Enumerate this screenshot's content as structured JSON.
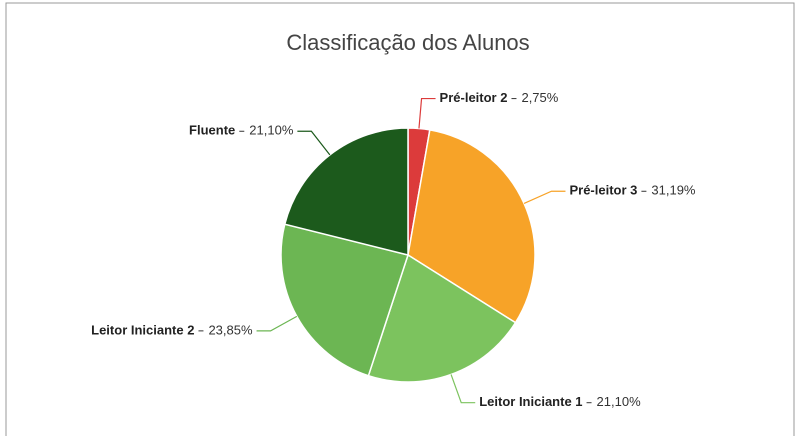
{
  "chart_data": {
    "type": "pie",
    "title": "Classificação dos Alunos",
    "categories": [
      "Pré-leitor 2",
      "Pré-leitor 3",
      "Leitor Iniciante 1",
      "Leitor Iniciante 2",
      "Fluente"
    ],
    "values": [
      2.75,
      31.19,
      21.1,
      23.85,
      21.1
    ],
    "value_labels": [
      "2,75%",
      "31,19%",
      "21,10%",
      "23,85%",
      "21,10%"
    ],
    "colors": [
      "#dc3b3b",
      "#f7a328",
      "#7cc35e",
      "#6cb653",
      "#1c5a1c"
    ]
  }
}
